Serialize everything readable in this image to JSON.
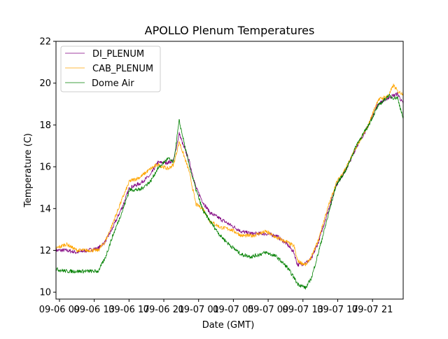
{
  "chart_data": {
    "type": "line",
    "title": "APOLLO Plenum Temperatures",
    "xlabel": "Date (GMT)",
    "ylabel": "Temperature (C)",
    "x_units": "hours since 09-06 00:00 GMT",
    "xlim": [
      8.6,
      48.53
    ],
    "ylim": [
      9.67,
      22
    ],
    "yticks": [
      10,
      12,
      14,
      16,
      18,
      20,
      22
    ],
    "xticks": [
      9,
      13,
      17,
      21,
      25,
      29,
      33,
      37,
      41,
      45
    ],
    "xtick_labels": [
      "09-06 09",
      "09-06 13",
      "09-06 17",
      "09-06 21",
      "09-07 01",
      "09-07 05",
      "09-07 09",
      "09-07 13",
      "09-07 17",
      "09-07 21"
    ],
    "legend_placement": "upper-left",
    "grid": false,
    "x": [
      8.6,
      9.81,
      11.01,
      13.43,
      14.23,
      15.04,
      16.25,
      17.05,
      18.26,
      19.47,
      20.27,
      21.48,
      22.12,
      22.77,
      23.25,
      23.9,
      24.7,
      25.51,
      26.31,
      27.52,
      28.73,
      29.93,
      31.14,
      32.75,
      33.96,
      35.17,
      35.97,
      36.38,
      37.34,
      37.99,
      38.79,
      39.6,
      40.8,
      42.01,
      43.22,
      44.43,
      45.63,
      46.84,
      47.41,
      47.89,
      48.53
    ],
    "series": [
      {
        "name": "DI_PLENUM",
        "color": "#800080",
        "values": [
          12.0,
          12.0,
          11.9,
          12.1,
          12.4,
          13.0,
          14.1,
          15.0,
          15.2,
          15.6,
          16.2,
          16.2,
          16.3,
          17.6,
          17.0,
          16.3,
          15.0,
          14.3,
          13.8,
          13.5,
          13.2,
          12.9,
          12.8,
          12.8,
          12.7,
          12.3,
          11.9,
          11.3,
          11.4,
          11.6,
          12.4,
          13.5,
          15.1,
          15.9,
          17.0,
          17.9,
          19.0,
          19.3,
          19.4,
          19.5,
          19.0
        ]
      },
      {
        "name": "CAB_PLENUM",
        "color": "#FFA500",
        "values": [
          12.1,
          12.3,
          12.0,
          12.0,
          12.4,
          13.2,
          14.5,
          15.3,
          15.5,
          15.9,
          16.1,
          15.9,
          16.1,
          17.2,
          16.6,
          15.8,
          14.2,
          14.0,
          13.4,
          13.1,
          13.0,
          12.7,
          12.7,
          12.9,
          12.6,
          12.4,
          12.2,
          11.5,
          11.3,
          11.7,
          12.5,
          13.7,
          15.2,
          16.0,
          17.0,
          17.9,
          19.2,
          19.4,
          19.9,
          19.6,
          19.5
        ]
      },
      {
        "name": "Dome Air",
        "color": "#008000",
        "values": [
          11.1,
          11.0,
          11.0,
          11.0,
          11.6,
          12.6,
          13.9,
          14.9,
          14.9,
          15.3,
          15.9,
          16.4,
          16.2,
          18.2,
          17.3,
          16.1,
          14.9,
          13.9,
          13.4,
          12.7,
          12.2,
          11.8,
          11.7,
          11.9,
          11.7,
          11.2,
          10.7,
          10.4,
          10.2,
          10.7,
          11.9,
          13.2,
          15.1,
          15.9,
          17.1,
          17.9,
          18.9,
          19.4,
          19.3,
          19.3,
          18.3
        ]
      }
    ]
  }
}
